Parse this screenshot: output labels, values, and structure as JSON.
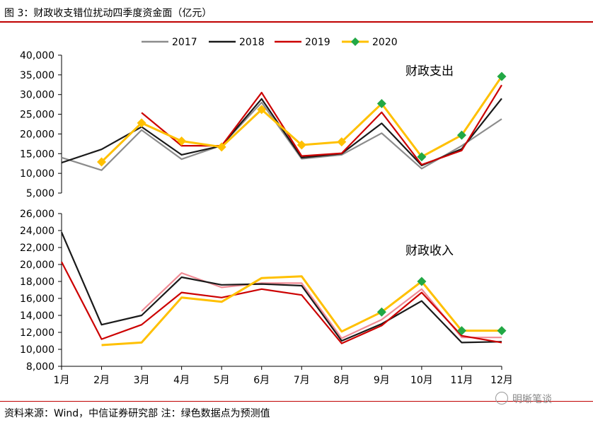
{
  "figure_title": "图 3：财政收支错位扰动四季度资金面（亿元）",
  "source_note": "资料来源：Wind，中信证券研究部 注：绿色数据点为预测值",
  "watermark": "明晰笔谈",
  "colors": {
    "s2017": "#8c8c8c",
    "s2017_income": "#f08a94",
    "s2018": "#1a1a1a",
    "s2019": "#cc0000",
    "s2020": "#ffc000",
    "forecast_marker": "#22a845",
    "rule": "#c00000"
  },
  "chart_data": [
    {
      "type": "line",
      "title": "财政支出",
      "categories": [
        "1月",
        "2月",
        "3月",
        "4月",
        "5月",
        "6月",
        "7月",
        "8月",
        "9月",
        "10月",
        "11月",
        "12月"
      ],
      "ylim": [
        5000,
        40000
      ],
      "yticks": [
        5000,
        10000,
        15000,
        20000,
        25000,
        30000,
        35000,
        40000
      ],
      "ytick_labels": [
        "5,000",
        "10,000",
        "15,000",
        "20,000",
        "25,000",
        "30,000",
        "35,000",
        "40,000"
      ],
      "legend": [
        "2017",
        "2018",
        "2019",
        "2020"
      ],
      "legend_position": "top-center",
      "series": [
        {
          "name": "2017",
          "color_key": "s2017",
          "values": [
            14000,
            10800,
            21000,
            13600,
            17100,
            28000,
            13700,
            14700,
            20200,
            11200,
            17000,
            23800
          ]
        },
        {
          "name": "2018",
          "color_key": "s2018",
          "values": [
            12700,
            16100,
            21800,
            14700,
            17000,
            28900,
            14000,
            15000,
            22700,
            12000,
            16200,
            29000
          ]
        },
        {
          "name": "2019",
          "color_key": "s2019",
          "values": [
            null,
            null,
            25400,
            17000,
            17000,
            30500,
            14400,
            15100,
            25500,
            12200,
            15800,
            32400
          ]
        },
        {
          "name": "2020",
          "color_key": "s2020",
          "values": [
            null,
            12900,
            22800,
            18200,
            16700,
            26200,
            17200,
            18000,
            27700,
            14200,
            19700,
            34600
          ],
          "forecast": [
            8,
            9,
            10,
            11
          ]
        }
      ]
    },
    {
      "type": "line",
      "title": "财政收入",
      "categories": [
        "1月",
        "2月",
        "3月",
        "4月",
        "5月",
        "6月",
        "7月",
        "8月",
        "9月",
        "10月",
        "11月",
        "12月"
      ],
      "ylim": [
        8000,
        26000
      ],
      "yticks": [
        8000,
        10000,
        12000,
        14000,
        16000,
        18000,
        20000,
        22000,
        24000,
        26000
      ],
      "ytick_labels": [
        "8,000",
        "10,000",
        "12,000",
        "14,000",
        "16,000",
        "18,000",
        "20,000",
        "22,000",
        "24,000",
        "26,000"
      ],
      "series": [
        {
          "name": "2017",
          "color_key": "s2017_income",
          "values": [
            null,
            null,
            14500,
            19000,
            17300,
            17800,
            17800,
            11300,
            13500,
            17100,
            11400,
            11400
          ]
        },
        {
          "name": "2018",
          "color_key": "s2018",
          "values": [
            23800,
            12900,
            14000,
            18500,
            17600,
            17700,
            17500,
            11000,
            13000,
            15700,
            10800,
            10900
          ]
        },
        {
          "name": "2019",
          "color_key": "s2019",
          "values": [
            20300,
            11200,
            12900,
            16700,
            16100,
            17100,
            16400,
            10700,
            12800,
            16700,
            11600,
            10800
          ]
        },
        {
          "name": "2020",
          "color_key": "s2020",
          "values": [
            null,
            10500,
            10800,
            16100,
            15600,
            18400,
            18600,
            12100,
            14400,
            18000,
            12200,
            12200
          ],
          "forecast": [
            8,
            9,
            10,
            11
          ]
        }
      ]
    }
  ]
}
